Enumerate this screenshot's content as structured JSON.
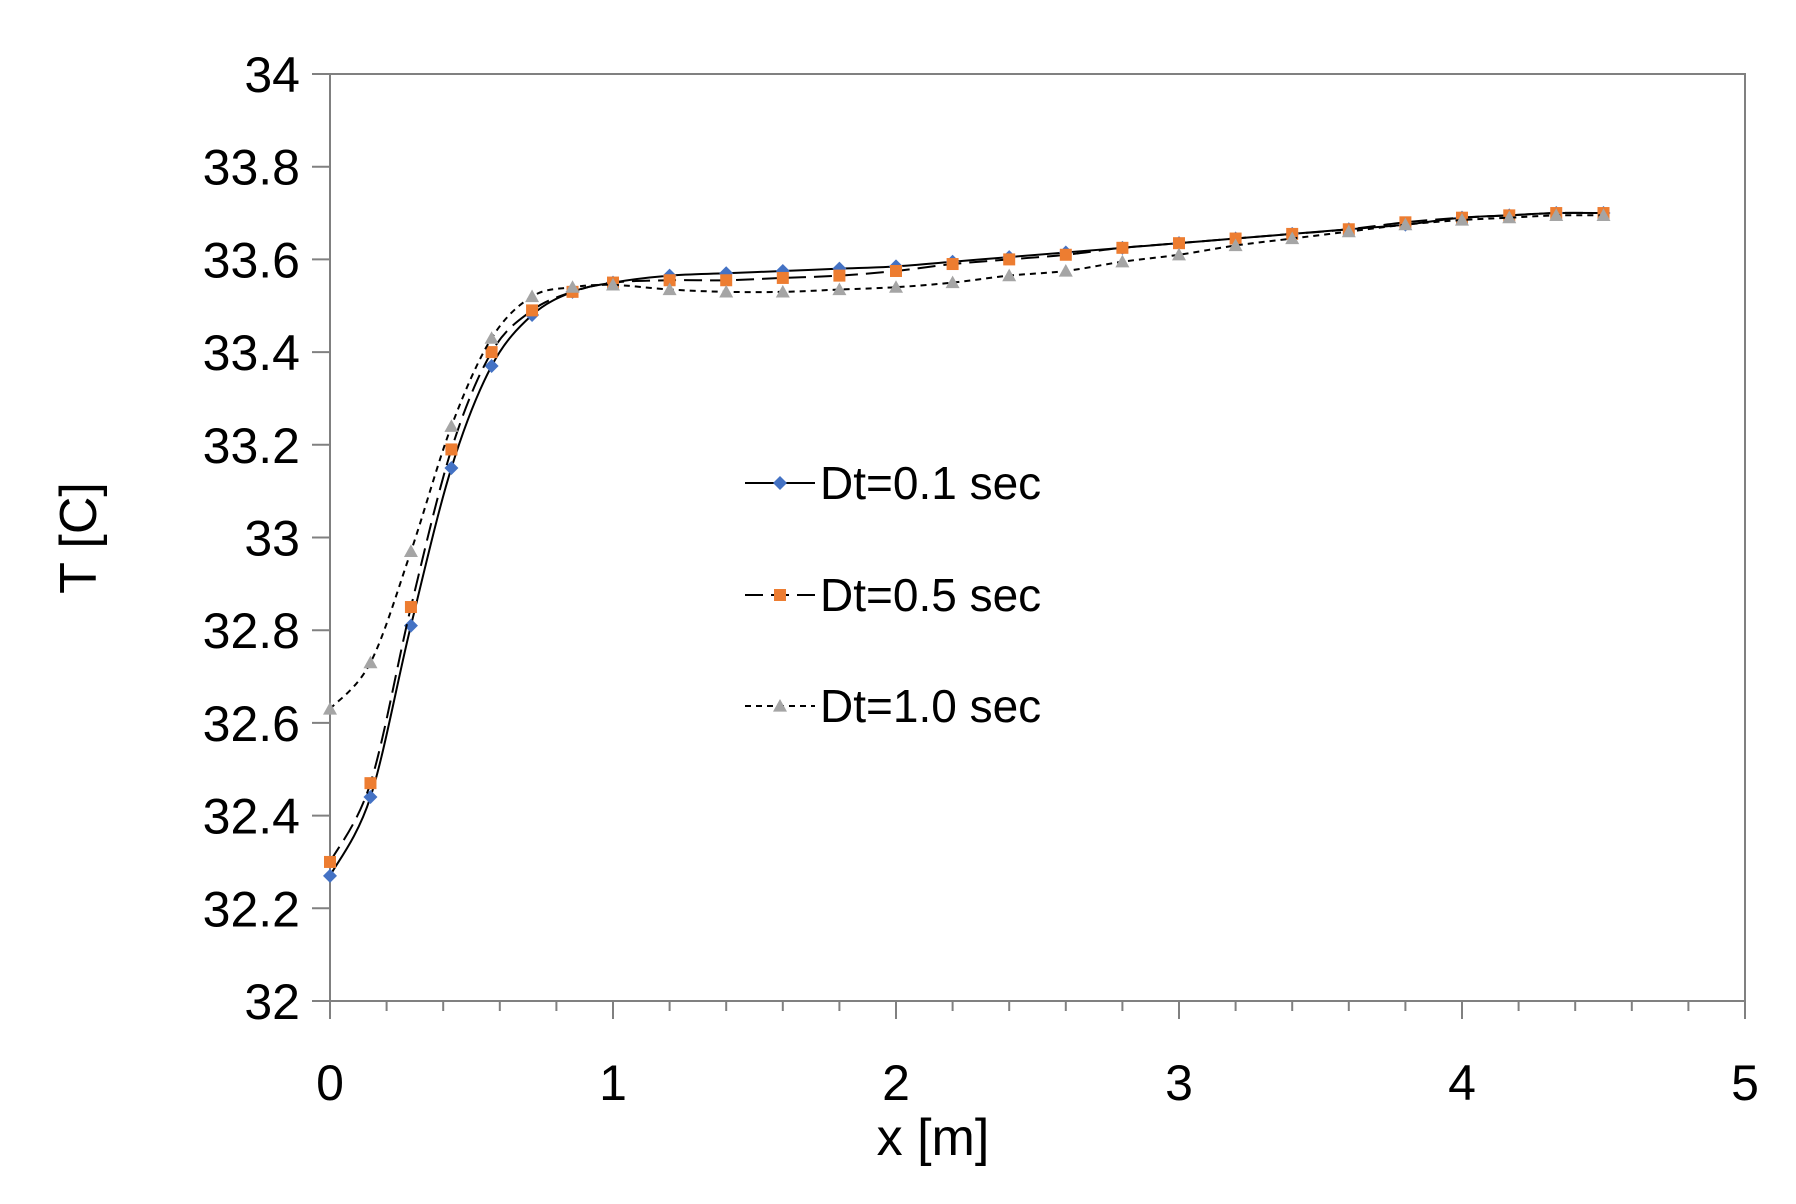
{
  "chart_data": {
    "type": "line",
    "title": "",
    "xlabel": "x [m]",
    "ylabel": "T [C]",
    "xlim": [
      0,
      5
    ],
    "ylim": [
      32,
      34
    ],
    "xticks": [
      "0",
      "1",
      "2",
      "3",
      "4",
      "5"
    ],
    "yticks": [
      "32",
      "32.2",
      "32.4",
      "32.6",
      "32.8",
      "33",
      "33.2",
      "33.4",
      "33.6",
      "33.8",
      "34"
    ],
    "grid": false,
    "legend_position": "center",
    "series": [
      {
        "name": "Dt=0.1 sec",
        "line": "solid",
        "marker": "diamond",
        "color": "#4472c4",
        "x": [
          0,
          0.143,
          0.286,
          0.429,
          0.571,
          0.714,
          0.857,
          1.0,
          1.2,
          1.4,
          1.6,
          1.8,
          2.0,
          2.2,
          2.4,
          2.6,
          2.8,
          3.0,
          3.2,
          3.4,
          3.6,
          3.8,
          4.0,
          4.167,
          4.333,
          4.5
        ],
        "y": [
          32.27,
          32.44,
          32.81,
          33.15,
          33.37,
          33.48,
          33.53,
          33.55,
          33.565,
          33.57,
          33.575,
          33.58,
          33.585,
          33.595,
          33.605,
          33.615,
          33.625,
          33.635,
          33.645,
          33.655,
          33.665,
          33.675,
          33.69,
          33.695,
          33.7,
          33.7
        ]
      },
      {
        "name": "Dt=0.5 sec",
        "line": "dashed",
        "marker": "square",
        "color": "#ed7d31",
        "x": [
          0,
          0.143,
          0.286,
          0.429,
          0.571,
          0.714,
          0.857,
          1.0,
          1.2,
          1.4,
          1.6,
          1.8,
          2.0,
          2.2,
          2.4,
          2.6,
          2.8,
          3.0,
          3.2,
          3.4,
          3.6,
          3.8,
          4.0,
          4.167,
          4.333,
          4.5
        ],
        "y": [
          32.3,
          32.47,
          32.85,
          33.19,
          33.4,
          33.49,
          33.53,
          33.55,
          33.555,
          33.555,
          33.56,
          33.565,
          33.575,
          33.59,
          33.6,
          33.61,
          33.625,
          33.635,
          33.645,
          33.655,
          33.665,
          33.68,
          33.69,
          33.695,
          33.7,
          33.7
        ]
      },
      {
        "name": "Dt=1.0 sec",
        "line": "dotted",
        "marker": "triangle",
        "color": "#a5a5a5",
        "x": [
          0,
          0.143,
          0.286,
          0.429,
          0.571,
          0.714,
          0.857,
          1.0,
          1.2,
          1.4,
          1.6,
          1.8,
          2.0,
          2.2,
          2.4,
          2.6,
          2.8,
          3.0,
          3.2,
          3.4,
          3.6,
          3.8,
          4.0,
          4.167,
          4.333,
          4.5
        ],
        "y": [
          32.63,
          32.73,
          32.97,
          33.24,
          33.43,
          33.52,
          33.54,
          33.545,
          33.535,
          33.53,
          33.53,
          33.535,
          33.54,
          33.55,
          33.565,
          33.575,
          33.595,
          33.61,
          33.63,
          33.645,
          33.66,
          33.675,
          33.685,
          33.69,
          33.695,
          33.695
        ]
      }
    ]
  }
}
